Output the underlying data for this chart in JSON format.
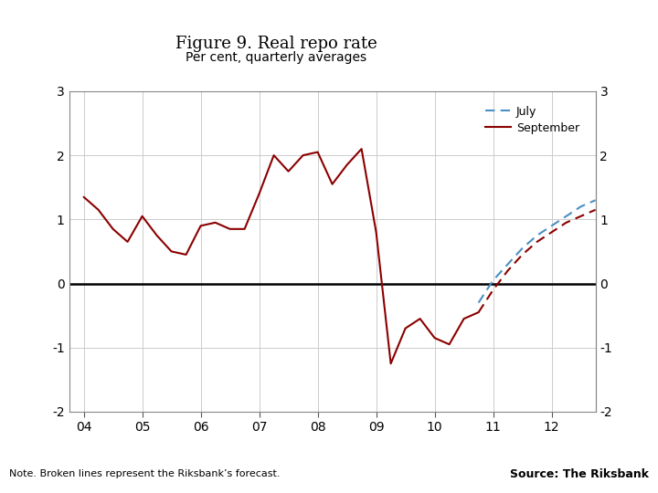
{
  "title": "Figure 9. Real repo rate",
  "subtitle": "Per cent, quarterly averages",
  "note": "Note. Broken lines represent the Riksbank’s forecast.",
  "source": "Source: The Riksbank",
  "background_color": "#ffffff",
  "footer_bar_color": "#1e3a6e",
  "ylim": [
    -2,
    3
  ],
  "yticks": [
    -2,
    -1,
    0,
    1,
    2,
    3
  ],
  "xlim": [
    2003.75,
    2012.75
  ],
  "xticks": [
    2004,
    2005,
    2006,
    2007,
    2008,
    2009,
    2010,
    2011,
    2012
  ],
  "xticklabels": [
    "04",
    "05",
    "06",
    "07",
    "08",
    "09",
    "10",
    "11",
    "12"
  ],
  "september_solid_x": [
    2004.0,
    2004.25,
    2004.5,
    2004.75,
    2005.0,
    2005.25,
    2005.5,
    2005.75,
    2006.0,
    2006.25,
    2006.5,
    2006.75,
    2007.0,
    2007.25,
    2007.5,
    2007.75,
    2008.0,
    2008.25,
    2008.5,
    2008.75,
    2009.0,
    2009.25,
    2009.5,
    2009.75,
    2010.0,
    2010.25,
    2010.5,
    2010.75
  ],
  "september_solid_y": [
    1.35,
    1.15,
    0.85,
    0.65,
    1.05,
    0.75,
    0.5,
    0.45,
    0.9,
    0.95,
    0.85,
    0.85,
    1.4,
    2.0,
    1.75,
    2.0,
    2.05,
    1.55,
    1.85,
    2.1,
    0.8,
    -1.25,
    -0.7,
    -0.55,
    -0.85,
    -0.95,
    -0.55,
    -0.45
  ],
  "september_dashed_x": [
    2010.75,
    2011.0,
    2011.25,
    2011.5,
    2011.75,
    2012.0,
    2012.25,
    2012.5,
    2012.75
  ],
  "september_dashed_y": [
    -0.45,
    -0.1,
    0.2,
    0.45,
    0.65,
    0.8,
    0.95,
    1.05,
    1.15
  ],
  "july_dashed_x": [
    2010.75,
    2011.0,
    2011.25,
    2011.5,
    2011.75,
    2012.0,
    2012.25,
    2012.5,
    2012.75
  ],
  "july_dashed_y": [
    -0.3,
    0.05,
    0.3,
    0.55,
    0.75,
    0.9,
    1.05,
    1.2,
    1.3
  ],
  "sept_color": "#8b0000",
  "july_color": "#4a90c4",
  "legend_fontsize": 9,
  "tick_fontsize": 10,
  "title_fontsize": 13,
  "subtitle_fontsize": 10
}
